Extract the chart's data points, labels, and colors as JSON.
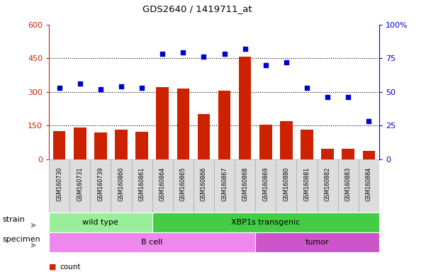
{
  "title": "GDS2640 / 1419711_at",
  "samples": [
    "GSM160730",
    "GSM160731",
    "GSM160739",
    "GSM160860",
    "GSM160861",
    "GSM160864",
    "GSM160865",
    "GSM160866",
    "GSM160867",
    "GSM160868",
    "GSM160869",
    "GSM160880",
    "GSM160881",
    "GSM160882",
    "GSM160883",
    "GSM160884"
  ],
  "counts": [
    125,
    140,
    120,
    132,
    122,
    320,
    315,
    200,
    305,
    455,
    155,
    168,
    132,
    45,
    47,
    38
  ],
  "percentiles": [
    53,
    56,
    52,
    54,
    53,
    78,
    79,
    76,
    78,
    82,
    70,
    72,
    53,
    46,
    46,
    28
  ],
  "ylim_left": [
    0,
    600
  ],
  "ylim_right": [
    0,
    100
  ],
  "yticks_left": [
    0,
    150,
    300,
    450,
    600
  ],
  "yticks_right": [
    0,
    25,
    50,
    75,
    100
  ],
  "bar_color": "#cc2200",
  "dot_color": "#0000cc",
  "background_color": "#ffffff",
  "strain_groups": [
    {
      "label": "wild type",
      "start": 0,
      "end": 5,
      "color": "#99ee99"
    },
    {
      "label": "XBP1s transgenic",
      "start": 5,
      "end": 16,
      "color": "#44cc44"
    }
  ],
  "specimen_groups": [
    {
      "label": "B cell",
      "start": 0,
      "end": 10,
      "color": "#ee88ee"
    },
    {
      "label": "tumor",
      "start": 10,
      "end": 16,
      "color": "#cc55cc"
    }
  ],
  "left_axis_color": "#cc2200",
  "right_axis_color": "#0000cc",
  "hgrid_values": [
    150,
    300,
    450
  ]
}
